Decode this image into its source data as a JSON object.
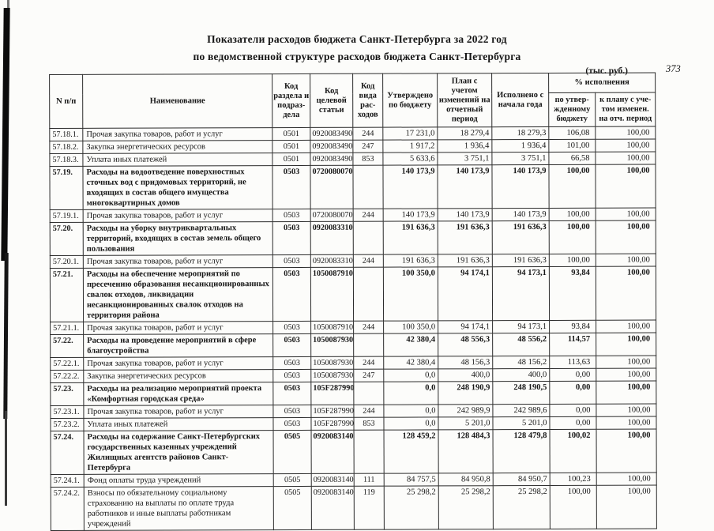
{
  "page": {
    "title_line1": "Показатели расходов бюджета Санкт-Петербурга за 2022 год",
    "title_line2": "по ведомственной структуре расходов бюджета Санкт-Петербурга",
    "units_note": "(тыс. руб.)",
    "page_number": "373"
  },
  "table": {
    "headers": {
      "num": "N п/п",
      "name": "Наименование",
      "kod_razdela": "Код раздела и подраз- дела",
      "kod_stati": "Код целевой статьи",
      "kod_vida": "Код вида рас- ходов",
      "utverzhdeno": "Утверждено по бюджету",
      "plan": "План с учетом изменений на отчетный период",
      "ispolneno": "Исполнено с начала года",
      "pct_group": "% исполнения",
      "pct_budget": "по утвер- жденному бюджету",
      "pct_plan": "к плану с уче- том изменен. на отч. период"
    },
    "rows": [
      {
        "num": "57.18.1.",
        "name": "Прочая закупка товаров, работ и услуг",
        "bold": false,
        "razdel": "0501",
        "stat": "0920083490",
        "vid": "244",
        "utv": "17 231,0",
        "plan": "18 279,4",
        "isp": "18 279,3",
        "pct_b": "106,08",
        "pct_p": "100,00"
      },
      {
        "num": "57.18.2.",
        "name": "Закупка энергетических ресурсов",
        "bold": false,
        "razdel": "0501",
        "stat": "0920083490",
        "vid": "247",
        "utv": "1 917,2",
        "plan": "1 936,4",
        "isp": "1 936,4",
        "pct_b": "101,00",
        "pct_p": "100,00"
      },
      {
        "num": "57.18.3.",
        "name": "Уплата иных платежей",
        "bold": false,
        "razdel": "0501",
        "stat": "0920083490",
        "vid": "853",
        "utv": "5 633,6",
        "plan": "3 751,1",
        "isp": "3 751,1",
        "pct_b": "66,58",
        "pct_p": "100,00"
      },
      {
        "num": "57.19.",
        "name": "Расходы на водоотведение поверхностных сточных вод с придомовых территорий, не входящих в состав общего имущества многоквартирных домов",
        "bold": true,
        "razdel": "0503",
        "stat": "0720080070",
        "vid": "",
        "utv": "140 173,9",
        "plan": "140 173,9",
        "isp": "140 173,9",
        "pct_b": "100,00",
        "pct_p": "100,00"
      },
      {
        "num": "57.19.1.",
        "name": "Прочая закупка товаров, работ и услуг",
        "bold": false,
        "razdel": "0503",
        "stat": "0720080070",
        "vid": "244",
        "utv": "140 173,9",
        "plan": "140 173,9",
        "isp": "140 173,9",
        "pct_b": "100,00",
        "pct_p": "100,00"
      },
      {
        "num": "57.20.",
        "name": "Расходы на уборку внутриквартальных территорий, входящих в состав земель общего пользования",
        "bold": true,
        "razdel": "0503",
        "stat": "0920083310",
        "vid": "",
        "utv": "191 636,3",
        "plan": "191 636,3",
        "isp": "191 636,3",
        "pct_b": "100,00",
        "pct_p": "100,00"
      },
      {
        "num": "57.20.1.",
        "name": "Прочая закупка товаров, работ и услуг",
        "bold": false,
        "razdel": "0503",
        "stat": "0920083310",
        "vid": "244",
        "utv": "191 636,3",
        "plan": "191 636,3",
        "isp": "191 636,3",
        "pct_b": "100,00",
        "pct_p": "100,00"
      },
      {
        "num": "57.21.",
        "name": "Расходы на обеспечение мероприятий по пресечению образования несанкционированных свалок отходов, ликвидации несанкционированных свалок отходов на территория района",
        "bold": true,
        "razdel": "0503",
        "stat": "1050087910",
        "vid": "",
        "utv": "100 350,0",
        "plan": "94 174,1",
        "isp": "94 173,1",
        "pct_b": "93,84",
        "pct_p": "100,00"
      },
      {
        "num": "57.21.1.",
        "name": "Прочая закупка товаров, работ и услуг",
        "bold": false,
        "razdel": "0503",
        "stat": "1050087910",
        "vid": "244",
        "utv": "100 350,0",
        "plan": "94 174,1",
        "isp": "94 173,1",
        "pct_b": "93,84",
        "pct_p": "100,00"
      },
      {
        "num": "57.22.",
        "name": "Расходы на проведение мероприятий в сфере благоустройства",
        "bold": true,
        "razdel": "0503",
        "stat": "1050087930",
        "vid": "",
        "utv": "42 380,4",
        "plan": "48 556,3",
        "isp": "48 556,2",
        "pct_b": "114,57",
        "pct_p": "100,00"
      },
      {
        "num": "57.22.1.",
        "name": "Прочая закупка товаров, работ и услуг",
        "bold": false,
        "razdel": "0503",
        "stat": "1050087930",
        "vid": "244",
        "utv": "42 380,4",
        "plan": "48 156,3",
        "isp": "48 156,2",
        "pct_b": "113,63",
        "pct_p": "100,00"
      },
      {
        "num": "57.22.2.",
        "name": "Закупка энергетических ресурсов",
        "bold": false,
        "razdel": "0503",
        "stat": "1050087930",
        "vid": "247",
        "utv": "0,0",
        "plan": "400,0",
        "isp": "400,0",
        "pct_b": "0,00",
        "pct_p": "100,00"
      },
      {
        "num": "57.23.",
        "name": "Расходы на реализацию мероприятий проекта «Комфортная городская среда»",
        "bold": true,
        "razdel": "0503",
        "stat": "105F287990",
        "vid": "",
        "utv": "0,0",
        "plan": "248 190,9",
        "isp": "248 190,5",
        "pct_b": "0,00",
        "pct_p": "100,00"
      },
      {
        "num": "57.23.1.",
        "name": "Прочая закупка товаров, работ и услуг",
        "bold": false,
        "razdel": "0503",
        "stat": "105F287990",
        "vid": "244",
        "utv": "0,0",
        "plan": "242 989,9",
        "isp": "242 989,6",
        "pct_b": "0,00",
        "pct_p": "100,00"
      },
      {
        "num": "57.23.2.",
        "name": "Уплата иных платежей",
        "bold": false,
        "razdel": "0503",
        "stat": "105F287990",
        "vid": "853",
        "utv": "0,0",
        "plan": "5 201,0",
        "isp": "5 201,0",
        "pct_b": "0,00",
        "pct_p": "100,00"
      },
      {
        "num": "57.24.",
        "name": "Расходы на содержание Санкт-Петербургских государственных казенных учреждений Жилищных агентств районов Санкт-Петербурга",
        "bold": true,
        "razdel": "0505",
        "stat": "0920083140",
        "vid": "",
        "utv": "128 459,2",
        "plan": "128 484,3",
        "isp": "128 479,8",
        "pct_b": "100,02",
        "pct_p": "100,00"
      },
      {
        "num": "57.24.1.",
        "name": "Фонд оплаты труда учреждений",
        "bold": false,
        "razdel": "0505",
        "stat": "0920083140",
        "vid": "111",
        "utv": "84 757,5",
        "plan": "84 950,8",
        "isp": "84 950,7",
        "pct_b": "100,23",
        "pct_p": "100,00"
      },
      {
        "num": "57.24.2.",
        "name": "Взносы по обязательному социальному страхованию на выплаты по оплате труда работников и иные выплаты работникам учреждений",
        "bold": false,
        "razdel": "0505",
        "stat": "0920083140",
        "vid": "119",
        "utv": "25 298,2",
        "plan": "25 298,2",
        "isp": "25 298,2",
        "pct_b": "100,00",
        "pct_p": "100,00"
      }
    ]
  }
}
